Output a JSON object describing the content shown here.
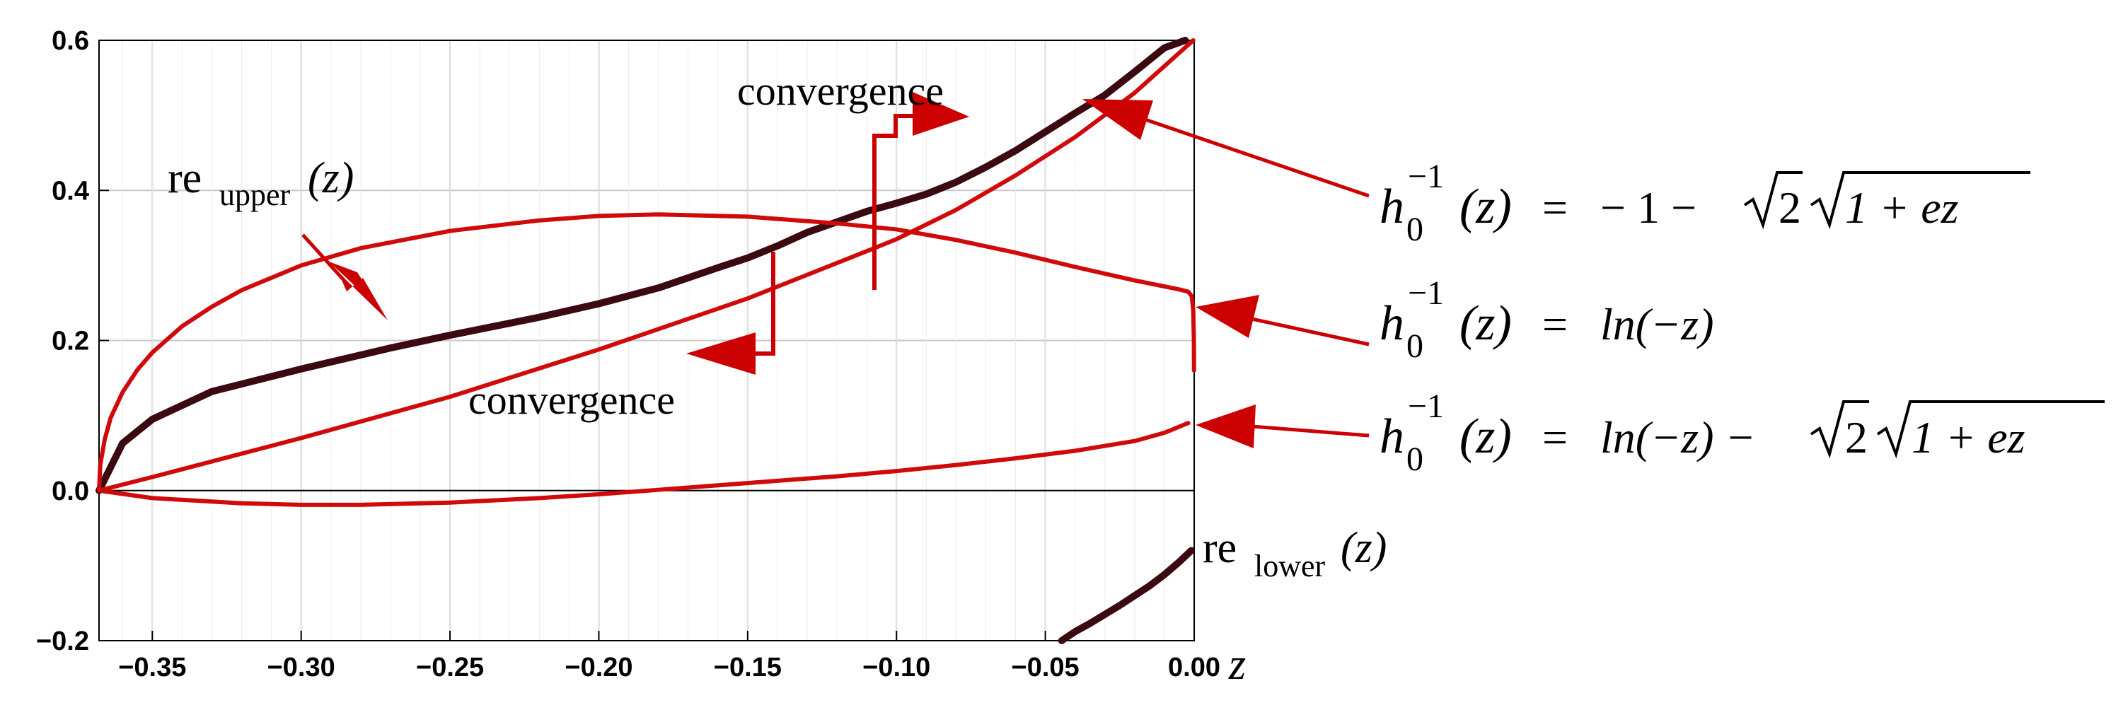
{
  "chart_data": {
    "type": "line",
    "xlabel": "z",
    "xlim": [
      -0.3679,
      0.0
    ],
    "ylim": [
      -0.2,
      0.6
    ],
    "grid": true,
    "x_ticks": [
      "-0.35",
      "-0.30",
      "-0.25",
      "-0.20",
      "-0.15",
      "-0.10",
      "-0.05",
      "0.00"
    ],
    "x_tick_values": [
      -0.35,
      -0.3,
      -0.25,
      -0.2,
      -0.15,
      -0.1,
      -0.05,
      0.0
    ],
    "y_ticks": [
      "0.6",
      "0.4",
      "0.2",
      "0.0",
      "-0.2"
    ],
    "y_tick_values": [
      0.6,
      0.4,
      0.2,
      0.0,
      -0.2
    ],
    "series": [
      {
        "name": "re_upper(z)",
        "color": "#3a0a10",
        "x": [
          -0.3679,
          -0.36,
          -0.35,
          -0.33,
          -0.3,
          -0.27,
          -0.25,
          -0.22,
          -0.2,
          -0.18,
          -0.16,
          -0.15,
          -0.14,
          -0.13,
          -0.12,
          -0.11,
          -0.1,
          -0.09,
          -0.08,
          -0.07,
          -0.06,
          -0.05,
          -0.04,
          -0.03,
          -0.02,
          -0.01,
          -0.003
        ],
        "y": [
          0.0,
          0.063,
          0.095,
          0.132,
          0.162,
          0.19,
          0.207,
          0.231,
          0.249,
          0.27,
          0.297,
          0.31,
          0.326,
          0.344,
          0.358,
          0.372,
          0.383,
          0.395,
          0.411,
          0.431,
          0.453,
          0.478,
          0.503,
          0.527,
          0.558,
          0.59,
          0.6
        ]
      },
      {
        "name": "re_lower(z)",
        "color": "#3a0a10",
        "x": [
          -0.0445,
          -0.04,
          -0.035,
          -0.03,
          -0.025,
          -0.02,
          -0.015,
          -0.01,
          -0.005,
          -0.001
        ],
        "y": [
          -0.2,
          -0.188,
          -0.177,
          -0.165,
          -0.153,
          -0.14,
          -0.127,
          -0.112,
          -0.095,
          -0.08
        ]
      },
      {
        "name": "h0^-1(z) = -1 - sqrt(2) sqrt(1+ez)",
        "color": "#d00a0a",
        "x": [
          -0.3679,
          -0.35,
          -0.3,
          -0.25,
          -0.2,
          -0.15,
          -0.11,
          -0.1,
          -0.08,
          -0.06,
          -0.04,
          -0.02,
          -0.0003
        ],
        "y": [
          0.0,
          0.018,
          0.07,
          0.125,
          0.188,
          0.256,
          0.319,
          0.335,
          0.374,
          0.42,
          0.471,
          0.53,
          0.6
        ]
      },
      {
        "name": "h0^-1(z) = ln(-z)",
        "color": "#d00a0a",
        "x": [
          -0.3679,
          -0.3675,
          -0.366,
          -0.364,
          -0.36,
          -0.355,
          -0.35,
          -0.34,
          -0.33,
          -0.32,
          -0.3,
          -0.28,
          -0.25,
          -0.22,
          -0.2,
          -0.18,
          -0.15,
          -0.12,
          -0.1,
          -0.08,
          -0.06,
          -0.04,
          -0.02,
          -0.01,
          -0.005,
          -0.002,
          -0.0008,
          -0.0003,
          -0.0001,
          -5e-05
        ],
        "y": [
          0.0,
          0.034,
          0.068,
          0.097,
          0.131,
          0.161,
          0.184,
          0.219,
          0.245,
          0.267,
          0.3,
          0.323,
          0.346,
          0.36,
          0.366,
          0.368,
          0.365,
          0.356,
          0.348,
          0.334,
          0.317,
          0.298,
          0.28,
          0.272,
          0.268,
          0.265,
          0.259,
          0.24,
          0.2,
          0.16
        ]
      },
      {
        "name": "h0^-1(z) = ln(-z) - sqrt(2) sqrt(1+ez)",
        "color": "#d00a0a",
        "x": [
          -0.3679,
          -0.35,
          -0.32,
          -0.3,
          -0.28,
          -0.25,
          -0.22,
          -0.2,
          -0.18,
          -0.15,
          -0.12,
          -0.1,
          -0.08,
          -0.06,
          -0.04,
          -0.02,
          -0.01,
          -0.002
        ],
        "y": [
          0.0,
          -0.01,
          -0.017,
          -0.019,
          -0.019,
          -0.016,
          -0.01,
          -0.005,
          0.001,
          0.01,
          0.019,
          0.026,
          0.034,
          0.043,
          0.053,
          0.066,
          0.077,
          0.09
        ]
      }
    ],
    "annotations": [
      {
        "text": "convergence",
        "x": -0.132,
        "y": 0.525
      },
      {
        "text": "convergence",
        "x": -0.175,
        "y": 0.115
      }
    ]
  },
  "labels": {
    "x_axis": "z",
    "convergence_top": "convergence",
    "convergence_bottom": "convergence",
    "re_upper_base": "re",
    "re_upper_sub": "upper",
    "re_upper_arg": "(z)",
    "re_lower_base": "re",
    "re_lower_sub": "lower",
    "re_lower_arg": "(z)",
    "eq_h": "h",
    "eq_sub": "0",
    "eq_sup": "−1",
    "eq_arg": "(z)",
    "eq_equals": "=",
    "eq1_rhs_pre": "− 1 −",
    "eq1_rhs_post": "2",
    "eq1_rhs_sqrt2": "1 + ez",
    "eq2_rhs": "ln(−z)",
    "eq3_rhs_pre": "ln(−z) −",
    "eq3_rhs_post": "2",
    "eq3_rhs_sqrt2": "1 + ez"
  }
}
